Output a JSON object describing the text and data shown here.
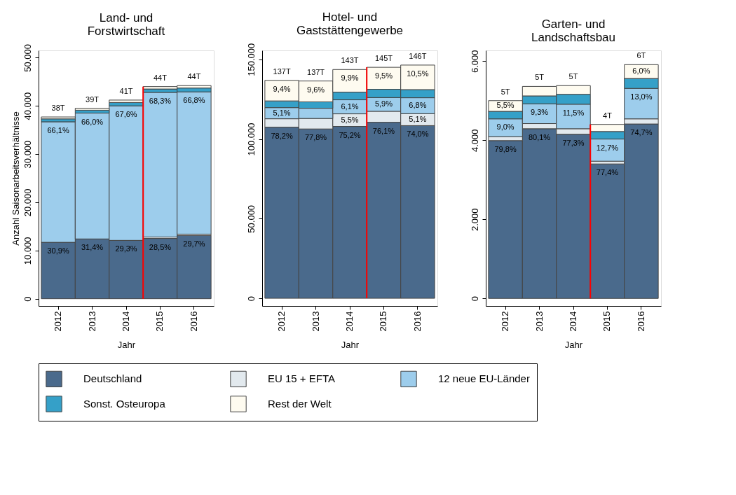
{
  "chart_data": [
    {
      "type": "bar",
      "stacked": true,
      "title": "Land- und Forstwirtschaft",
      "xlabel": "Jahr",
      "ylabel": "Anzahl Saisonarbeitsverhältnisse",
      "legend": "bottom",
      "categories": [
        "2012",
        "2013",
        "2014",
        "2015",
        "2016"
      ],
      "ylim": [
        -1500,
        51500
      ],
      "yticks": [
        {
          "value": 0,
          "label": "0"
        },
        {
          "value": 10000,
          "label": "10.000"
        },
        {
          "value": 20000,
          "label": "20.000"
        },
        {
          "value": 30000,
          "label": "30.000"
        },
        {
          "value": 40000,
          "label": "40.000"
        },
        {
          "value": 50000,
          "label": "50.000"
        }
      ],
      "series": [
        {
          "name": "Deutschland",
          "color": "#4a6a8c",
          "values": [
            11700,
            12400,
            12100,
            12500,
            13100
          ]
        },
        {
          "name": "EU 15 + EFTA",
          "color": "#e2e9ee",
          "values": [
            null,
            null,
            null,
            300,
            300
          ]
        },
        {
          "name": "12 neue EU-Länder",
          "color": "#9dcdec",
          "values": [
            25000,
            26100,
            27900,
            30000,
            29500
          ]
        },
        {
          "name": "Sonst. Osteuropa",
          "color": "#35a0c8",
          "values": [
            600,
            600,
            700,
            700,
            800
          ]
        },
        {
          "name": "Rest der Welt",
          "color": "#fefbf0",
          "values": [
            400,
            400,
            500,
            500,
            500
          ]
        }
      ],
      "totals": [
        "38T",
        "39T",
        "41T",
        "44T",
        "44T"
      ],
      "annotations": [
        {
          "text": "30,9%",
          "x": "2012",
          "y": 11700
        },
        {
          "text": "31,4%",
          "x": "2013",
          "y": 12400
        },
        {
          "text": "29,3%",
          "x": "2014",
          "y": 12100
        },
        {
          "text": "28,5%",
          "x": "2015",
          "y": 12500
        },
        {
          "text": "29,7%",
          "x": "2016",
          "y": 13100
        },
        {
          "text": "66,1%",
          "x": "2012",
          "y": 36700
        },
        {
          "text": "66,0%",
          "x": "2013",
          "y": 38500
        },
        {
          "text": "67,6%",
          "x": "2014",
          "y": 40000
        },
        {
          "text": "68,3%",
          "x": "2015",
          "y": 42800
        },
        {
          "text": "66,8%",
          "x": "2016",
          "y": 42900
        }
      ],
      "ref_lines": [
        {
          "axis": "x",
          "value": "2015",
          "color": "#ff0000"
        }
      ]
    },
    {
      "type": "bar",
      "stacked": true,
      "title": "Hotel- und Gaststättengewerbe",
      "xlabel": "Jahr",
      "legend": "bottom",
      "categories": [
        "2012",
        "2013",
        "2014",
        "2015",
        "2016"
      ],
      "ylim": [
        -4800,
        155600
      ],
      "yticks": [
        {
          "value": 0,
          "label": "0"
        },
        {
          "value": 50000,
          "label": "50.000"
        },
        {
          "value": 100000,
          "label": "100.000"
        },
        {
          "value": 150000,
          "label": "150.000"
        }
      ],
      "series": [
        {
          "name": "Deutschland",
          "color": "#4a6a8c",
          "values": [
            107400,
            106300,
            107900,
            110500,
            108400
          ]
        },
        {
          "name": "EU 15 + EFTA",
          "color": "#e2e9ee",
          "values": [
            5300,
            6600,
            7900,
            6900,
            7500
          ]
        },
        {
          "name": "12 neue EU-Länder",
          "color": "#9dcdec",
          "values": [
            7000,
            6400,
            8800,
            8600,
            10000
          ]
        },
        {
          "name": "Sonst. Osteuropa",
          "color": "#35a0c8",
          "values": [
            4200,
            4000,
            4800,
            5200,
            5100
          ]
        },
        {
          "name": "Rest der Welt",
          "color": "#fefbf0",
          "values": [
            12900,
            13100,
            14200,
            13800,
            15400
          ]
        }
      ],
      "totals": [
        "137T",
        "137T",
        "143T",
        "145T",
        "146T"
      ],
      "annotations": [
        {
          "text": "78,2%",
          "x": "2012",
          "y": 107400
        },
        {
          "text": "77,8%",
          "x": "2013",
          "y": 106300
        },
        {
          "text": "75,2%",
          "x": "2014",
          "y": 107900
        },
        {
          "text": "76,1%",
          "x": "2015",
          "y": 110500
        },
        {
          "text": "74,0%",
          "x": "2016",
          "y": 108400
        },
        {
          "text": "5,5%",
          "x": "2014",
          "y": 115800
        },
        {
          "text": "5,1%",
          "x": "2016",
          "y": 115900
        },
        {
          "text": "5,1%",
          "x": "2012",
          "y": 119700
        },
        {
          "text": "6,1%",
          "x": "2014",
          "y": 124600
        },
        {
          "text": "5,9%",
          "x": "2015",
          "y": 126000
        },
        {
          "text": "6,8%",
          "x": "2016",
          "y": 125900
        },
        {
          "text": "9,4%",
          "x": "2012",
          "y": 136800
        },
        {
          "text": "9,6%",
          "x": "2013",
          "y": 136400
        },
        {
          "text": "9,9%",
          "x": "2014",
          "y": 143600
        },
        {
          "text": "9,5%",
          "x": "2015",
          "y": 145000
        },
        {
          "text": "10,5%",
          "x": "2016",
          "y": 146400
        }
      ],
      "ref_lines": [
        {
          "axis": "x",
          "value": "2015",
          "color": "#ff0000"
        }
      ]
    },
    {
      "type": "bar",
      "stacked": true,
      "title": "Garten- und Landschaftsbau",
      "xlabel": "Jahr",
      "legend": "bottom",
      "categories": [
        "2012",
        "2013",
        "2014",
        "2015",
        "2016"
      ],
      "ylim": [
        -190,
        6270
      ],
      "yticks": [
        {
          "value": 0,
          "label": "0"
        },
        {
          "value": 2000,
          "label": "2.000"
        },
        {
          "value": 4000,
          "label": "4.000"
        },
        {
          "value": 6000,
          "label": "6.000"
        }
      ],
      "series": [
        {
          "name": "Deutschland",
          "color": "#4a6a8c",
          "values": [
            3990,
            4290,
            4150,
            3400,
            4410
          ]
        },
        {
          "name": "EU 15 + EFTA",
          "color": "#e2e9ee",
          "values": [
            100,
            130,
            140,
            70,
            130
          ]
        },
        {
          "name": "12 neue EU-Länder",
          "color": "#9dcdec",
          "values": [
            450,
            500,
            620,
            560,
            770
          ]
        },
        {
          "name": "Sonst. Osteuropa",
          "color": "#35a0c8",
          "values": [
            190,
            200,
            250,
            190,
            250
          ]
        },
        {
          "name": "Rest der Welt",
          "color": "#fefbf0",
          "values": [
            270,
            240,
            220,
            180,
            350
          ]
        }
      ],
      "totals": [
        "5T",
        "5T",
        "5T",
        "4T",
        "6T"
      ],
      "annotations": [
        {
          "text": "79,8%",
          "x": "2012",
          "y": 3990
        },
        {
          "text": "80,1%",
          "x": "2013",
          "y": 4290
        },
        {
          "text": "77,3%",
          "x": "2014",
          "y": 4150
        },
        {
          "text": "77,4%",
          "x": "2015",
          "y": 3400
        },
        {
          "text": "74,7%",
          "x": "2016",
          "y": 4410
        },
        {
          "text": "9,0%",
          "x": "2012",
          "y": 4540
        },
        {
          "text": "9,3%",
          "x": "2013",
          "y": 4920
        },
        {
          "text": "11,5%",
          "x": "2014",
          "y": 4910
        },
        {
          "text": "12,7%",
          "x": "2015",
          "y": 4030
        },
        {
          "text": "13,0%",
          "x": "2016",
          "y": 5310
        },
        {
          "text": "5,5%",
          "x": "2012",
          "y": 5000
        },
        {
          "text": "6,0%",
          "x": "2016",
          "y": 5910
        }
      ],
      "ref_lines": [
        {
          "axis": "x",
          "value": "2015",
          "color": "#ff0000"
        }
      ]
    }
  ]
}
